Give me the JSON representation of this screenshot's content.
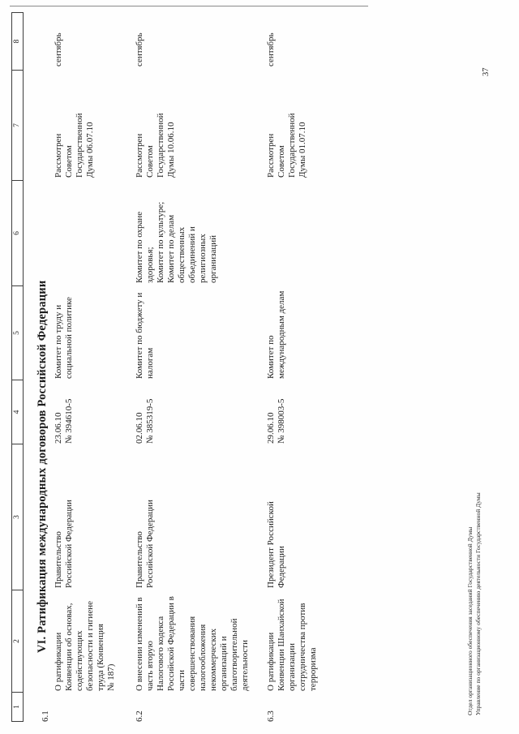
{
  "section_title": "VI. Ратификация международных договоров Российской Федерации",
  "page_number": "37",
  "footer": {
    "line1": "Отдел организационного обеспечения заседаний Государственной Думы",
    "line2": "Управление по организационному обеспечению деятельности Государственной Думы"
  },
  "table": {
    "column_headers": [
      "1",
      "2",
      "3",
      "4",
      "5",
      "6",
      "7",
      "8"
    ],
    "rows": [
      {
        "num": "6.1",
        "bill_title": "О ратификации\nКонвенции об основах,\nсодействующих\nбезопасности и гигиене\nтруда (Конвенция\n№ 187)",
        "initiator": "Правительство\nРоссийской Федерации",
        "date_number": "23.06.10\n№ 394610-5",
        "responsible_committee": "Комитет по труду и\nсоциальной политике",
        "co_committees": "",
        "status": "Рассмотрен\nСоветом\nГосударственной\nДумы 06.07.10",
        "month": "сентябрь"
      },
      {
        "num": "6.2",
        "bill_title": "О внесении изменений в\nчасть вторую\nНалогового кодекса\nРоссийской Федерации в\nчасти\nсовершенствования\nналогообложения\nнекоммерческих\nорганизаций и\nблаготворительной\nдеятельности",
        "initiator": "Правительство\nРоссийской Федерации",
        "date_number": "02.06.10\n№ 385319-5",
        "responsible_committee": "Комитет по бюджету и\nналогам",
        "co_committees": "Комитет по охране\nздоровья;\nКомитет по культуре;\nКомитет по делам\nобщественных\nобъединений и\nрелигиозных\nорганизаций",
        "status": "Рассмотрен\nСоветом\nГосударственной\nДумы 10.06.10",
        "month": "сентябрь"
      },
      {
        "num": "6.3",
        "bill_title": "О ратификации\nКонвенции Шанхайской\nорганизации\nсотрудничества против\nтерроризма",
        "initiator": "Президент Российской\nФедерации",
        "date_number": "29.06.10\n№ 398003-5",
        "responsible_committee": "Комитет по\nмеждународным делам",
        "co_committees": "",
        "status": "Рассмотрен\nСоветом\nГосударственной\nДумы 01.07.10",
        "month": "сентябрь"
      }
    ]
  }
}
